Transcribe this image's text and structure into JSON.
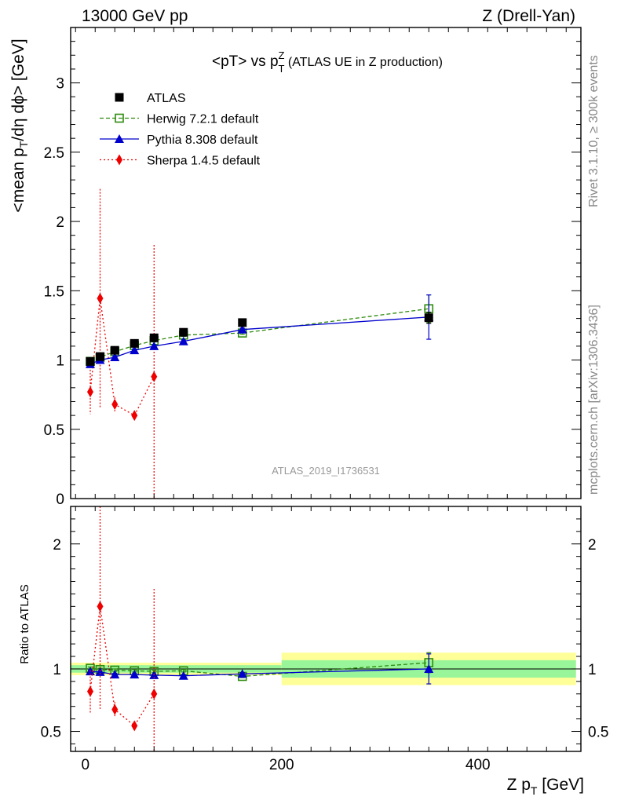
{
  "header": {
    "energy": "13000 GeV pp",
    "process": "Z (Drell-Yan)"
  },
  "side_labels": {
    "rivet": "Rivet 3.1.10, ≥ 300k events",
    "mcplots": "mcplots.cern.ch [arXiv:1306.3436]"
  },
  "chart_data": [
    {
      "type": "scatter",
      "panel": "main",
      "title": "<pT> vs pTZ (ATLAS UE in Z production)",
      "xlabel": "Z pT [GeV]",
      "ylabel": "<mean pT/dη dϕ> [GeV]",
      "watermark": "ATLAS_2019_I1736531",
      "xlim": [
        -15,
        505
      ],
      "ylim": [
        0,
        3.4
      ],
      "y_ticks": [
        "0",
        "0.5",
        "1",
        "1.5",
        "2",
        "2.5",
        "3"
      ],
      "legend_position": "top-left",
      "series": [
        {
          "name": "ATLAS",
          "color": "#000000",
          "marker": "square",
          "x": [
            5,
            15,
            30,
            50,
            70,
            100,
            160,
            350
          ],
          "y": [
            0.99,
            1.025,
            1.07,
            1.12,
            1.16,
            1.2,
            1.27,
            1.305
          ],
          "yerr": [
            0.02,
            0.02,
            0.02,
            0.02,
            0.02,
            0.02,
            0.02,
            0.04
          ]
        },
        {
          "name": "Herwig 7.2.1 default",
          "color": "#2e8b0e",
          "marker": "open-square",
          "line": "dashed",
          "x": [
            5,
            15,
            30,
            50,
            70,
            100,
            160,
            350
          ],
          "y": [
            0.99,
            1.02,
            1.06,
            1.105,
            1.14,
            1.18,
            1.195,
            1.37
          ],
          "yerr": [
            0.01,
            0.01,
            0.01,
            0.01,
            0.01,
            0.01,
            0.01,
            0.1
          ]
        },
        {
          "name": "Pythia 8.308 default",
          "color": "#0000cc",
          "marker": "triangle",
          "line": "solid",
          "x": [
            5,
            15,
            30,
            50,
            70,
            100,
            160,
            350
          ],
          "y": [
            0.97,
            1.0,
            1.02,
            1.07,
            1.1,
            1.135,
            1.22,
            1.31
          ],
          "yerr": [
            0.01,
            0.01,
            0.01,
            0.01,
            0.01,
            0.01,
            0.01,
            0.16
          ]
        },
        {
          "name": "Sherpa 1.4.5 default",
          "color": "#ee0000",
          "marker": "diamond",
          "line": "dotted",
          "x": [
            5,
            15,
            30,
            50,
            70
          ],
          "y": [
            0.77,
            1.445,
            0.68,
            0.6,
            0.88
          ],
          "yerr_low": [
            0.16,
            0.79,
            0.05,
            0.0,
            0.88
          ],
          "yerr_high": [
            0.16,
            0.79,
            0.05,
            0.0,
            0.95
          ]
        }
      ]
    },
    {
      "type": "scatter",
      "panel": "ratio",
      "ylabel": "Ratio to ATLAS",
      "xlabel": "Z pT [GeV]",
      "xlim": [
        -15,
        505
      ],
      "ylim": [
        0.34,
        2.3
      ],
      "x_ticks": [
        "0",
        "200",
        "400"
      ],
      "y_ticks": [
        "0.5",
        "1",
        "2"
      ],
      "bands": [
        {
          "x": [
            -15,
            200
          ],
          "inner": [
            0.97,
            1.03
          ],
          "outer": [
            0.95,
            1.05
          ]
        },
        {
          "x": [
            200,
            500
          ],
          "inner": [
            0.93,
            1.07
          ],
          "outer": [
            0.87,
            1.13
          ]
        }
      ],
      "band_colors": {
        "inner": "#99f599",
        "outer": "#ffff99"
      },
      "series": [
        {
          "name": "Herwig 7.2.1 default",
          "color": "#2e8b0e",
          "marker": "open-square",
          "line": "dashed",
          "x": [
            5,
            15,
            30,
            50,
            70,
            100,
            160,
            350
          ],
          "y": [
            1.005,
            0.995,
            0.99,
            0.985,
            0.98,
            0.985,
            0.94,
            1.05
          ],
          "yerr": [
            0.01,
            0.01,
            0.01,
            0.01,
            0.01,
            0.01,
            0.01,
            0.08
          ]
        },
        {
          "name": "Pythia 8.308 default",
          "color": "#0000cc",
          "marker": "triangle",
          "line": "solid",
          "x": [
            5,
            15,
            30,
            50,
            70,
            100,
            160,
            350
          ],
          "y": [
            0.98,
            0.975,
            0.955,
            0.955,
            0.95,
            0.945,
            0.96,
            1.0
          ],
          "yerr": [
            0.01,
            0.01,
            0.01,
            0.01,
            0.01,
            0.01,
            0.01,
            0.12
          ]
        },
        {
          "name": "Sherpa 1.4.5 default",
          "color": "#ee0000",
          "marker": "diamond",
          "line": "dotted",
          "x": [
            5,
            15,
            30,
            50,
            70
          ],
          "y": [
            0.82,
            1.5,
            0.675,
            0.545,
            0.8
          ],
          "yerr_low": [
            0.17,
            0.82,
            0.06,
            0.0,
            0.8
          ],
          "yerr_high": [
            0.17,
            0.81,
            0.06,
            0.0,
            0.84
          ]
        }
      ]
    }
  ]
}
